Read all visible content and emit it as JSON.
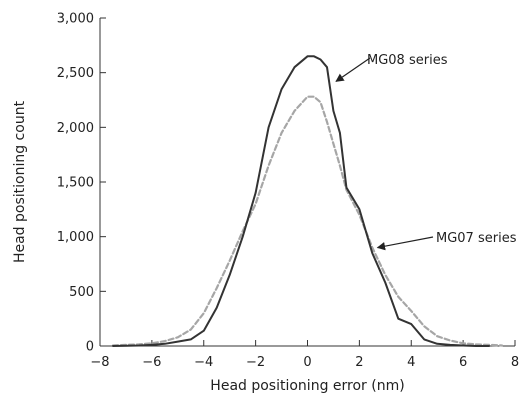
{
  "chart_data": {
    "type": "line",
    "title": "",
    "xlabel": "Head positioning error (nm)",
    "ylabel": "Head positioning count",
    "xlim": [
      -8,
      8
    ],
    "ylim": [
      0,
      3000
    ],
    "x_ticks": [
      -8,
      -6,
      -4,
      -2,
      0,
      2,
      4,
      6,
      8
    ],
    "x_tick_labels": [
      "−8",
      "−6",
      "−4",
      "−2",
      "0",
      "2",
      "4",
      "6",
      "8"
    ],
    "y_ticks": [
      0,
      500,
      1000,
      1500,
      2000,
      2500,
      3000
    ],
    "y_tick_labels": [
      "0",
      "500",
      "1,000",
      "1,500",
      "2,000",
      "2,500",
      "3,000"
    ],
    "grid": false,
    "legend": "none",
    "series": [
      {
        "name": "MG08 series",
        "style": "solid",
        "color": "#333333",
        "x": [
          -7.5,
          -6.5,
          -6,
          -5.5,
          -5,
          -4.5,
          -4,
          -3.5,
          -3,
          -2.5,
          -2,
          -1.5,
          -1,
          -0.5,
          0,
          0.25,
          0.5,
          0.75,
          1,
          1.25,
          1.5,
          2,
          2.5,
          3,
          3.5,
          4,
          4.5,
          5,
          5.5,
          6,
          6.5,
          7
        ],
        "y": [
          0,
          5,
          10,
          20,
          40,
          60,
          140,
          350,
          650,
          1000,
          1400,
          2000,
          2350,
          2550,
          2650,
          2650,
          2620,
          2550,
          2150,
          1950,
          1450,
          1250,
          850,
          580,
          250,
          200,
          60,
          20,
          10,
          5,
          0,
          0
        ]
      },
      {
        "name": "MG07 series",
        "style": "dashed",
        "color": "#a6a6a6",
        "x": [
          -7.5,
          -7,
          -6.5,
          -6,
          -5.5,
          -5,
          -4.5,
          -4,
          -3.5,
          -3,
          -2.5,
          -2,
          -1.5,
          -1,
          -0.5,
          0,
          0.25,
          0.5,
          0.75,
          1,
          1.25,
          1.5,
          2,
          2.5,
          3,
          3.5,
          4,
          4.5,
          5,
          5.5,
          6,
          6.5,
          7,
          7.5
        ],
        "y": [
          5,
          10,
          15,
          25,
          45,
          80,
          150,
          300,
          530,
          780,
          1050,
          1300,
          1650,
          1950,
          2150,
          2280,
          2280,
          2230,
          2050,
          1850,
          1650,
          1430,
          1200,
          900,
          650,
          450,
          320,
          180,
          90,
          50,
          25,
          15,
          10,
          5
        ]
      }
    ],
    "annotations": [
      {
        "text": "MG08 series",
        "series": "MG08 series",
        "points_to": {
          "x": 1.1,
          "y": 2420
        }
      },
      {
        "text": "MG07 series",
        "series": "MG07 series",
        "points_to": {
          "x": 2.7,
          "y": 900
        }
      }
    ]
  }
}
